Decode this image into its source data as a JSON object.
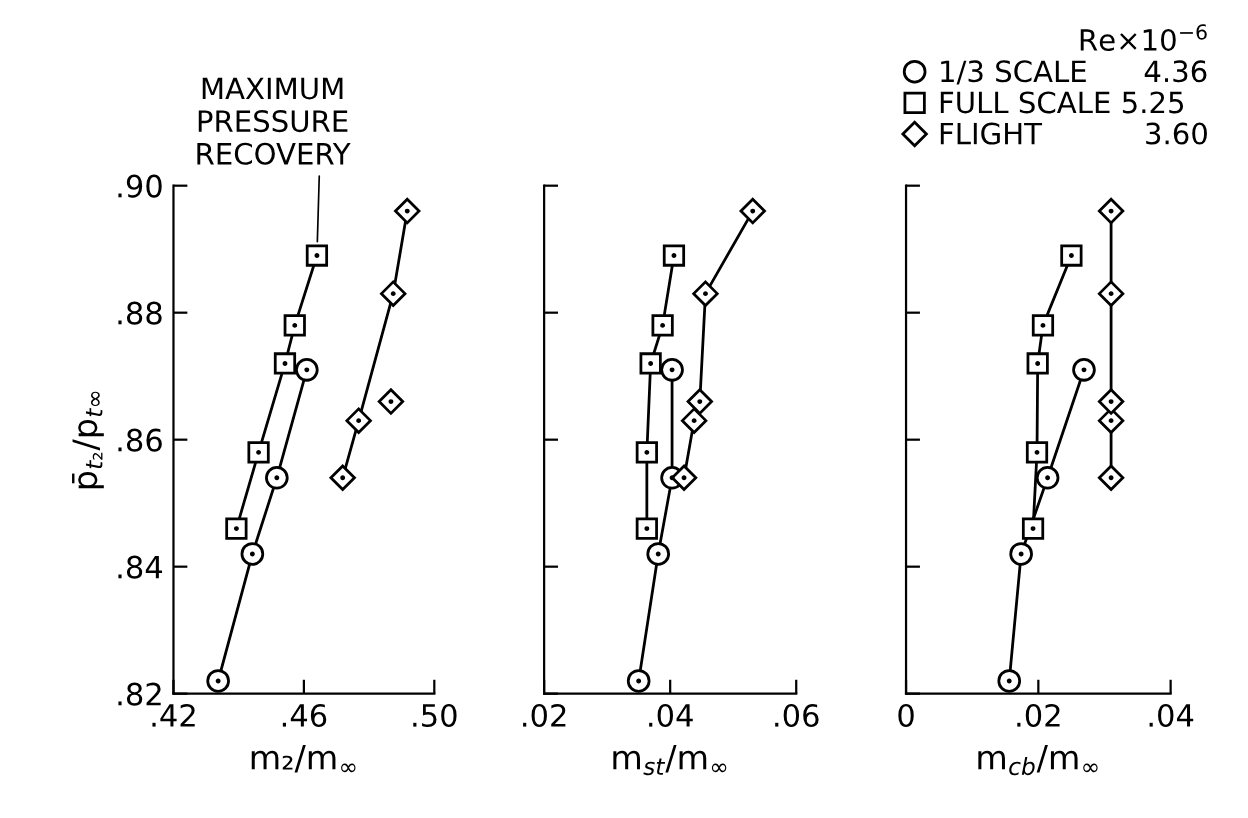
{
  "chart_data": [
    {
      "type": "line",
      "xlabel": "m₂/m$_{∞}$",
      "ylabel": "p̄$_{t₂}$/p$_{t∞}$",
      "xlim": [
        0.42,
        0.5
      ],
      "xticks": [
        {
          "value": 0.42,
          "label": ".42"
        },
        {
          "value": 0.46,
          "label": ".46"
        },
        {
          "value": 0.5,
          "label": ".50"
        }
      ],
      "ylim": [
        0.82,
        0.9
      ],
      "yticks": [
        {
          "value": 0.82,
          "label": ".82"
        },
        {
          "value": 0.84,
          "label": ".84"
        },
        {
          "value": 0.86,
          "label": ".86"
        },
        {
          "value": 0.88,
          "label": ".88"
        },
        {
          "value": 0.9,
          "label": ".90"
        }
      ],
      "annotations": [
        {
          "text": "MAXIMUM\nPRESSURE\nRECOVERY",
          "x": 0.464,
          "y": 0.889
        }
      ],
      "series": [
        {
          "marker": "circle",
          "color": "#000000",
          "x": [
            0.4337,
            0.4442,
            0.4517,
            0.4609
          ],
          "values": [
            0.822,
            0.842,
            0.854,
            0.871
          ]
        },
        {
          "marker": "square",
          "color": "#000000",
          "x": [
            0.4393,
            0.4461,
            0.4542,
            0.4572,
            0.464
          ],
          "values": [
            0.846,
            0.858,
            0.872,
            0.878,
            0.889
          ]
        },
        {
          "marker": "diamond",
          "color": "#000000",
          "x": [
            0.4719,
            0.4768,
            0.4874,
            0.4917
          ],
          "values": [
            0.854,
            0.863,
            0.883,
            0.896
          ]
        },
        {
          "type": "scatter",
          "marker": "diamond",
          "color": "#000000",
          "x": [
            0.4867
          ],
          "values": [
            0.866
          ]
        }
      ]
    },
    {
      "type": "line",
      "xlabel": "m$_{st}$/m$_{∞}$",
      "xlim": [
        0.02,
        0.06
      ],
      "xticks": [
        {
          "value": 0.02,
          "label": ".02"
        },
        {
          "value": 0.04,
          "label": ".04"
        },
        {
          "value": 0.06,
          "label": ".06"
        }
      ],
      "ylim": [
        0.82,
        0.9
      ],
      "yticks": [
        {
          "value": 0.82,
          "label": null
        },
        {
          "value": 0.84,
          "label": null
        },
        {
          "value": 0.86,
          "label": null
        },
        {
          "value": 0.88,
          "label": null
        },
        {
          "value": 0.9,
          "label": null
        }
      ],
      "tick_labels": "x",
      "series": [
        {
          "marker": "circle",
          "color": "#000000",
          "x": [
            0.035,
            0.0381,
            0.0403,
            0.0403
          ],
          "values": [
            0.822,
            0.842,
            0.854,
            0.871
          ]
        },
        {
          "marker": "square",
          "color": "#000000",
          "x": [
            0.0363,
            0.0363,
            0.0369,
            0.0388,
            0.0406
          ],
          "values": [
            0.846,
            0.858,
            0.872,
            0.878,
            0.889
          ]
        },
        {
          "marker": "diamond",
          "color": "#000000",
          "x": [
            0.0422,
            0.0438,
            0.0447,
            0.0456,
            0.0531
          ],
          "values": [
            0.854,
            0.863,
            0.866,
            0.883,
            0.896
          ]
        }
      ]
    },
    {
      "type": "line",
      "xlabel": "m$_{cb}$/m$_{∞}$",
      "xlim": [
        0,
        0.04
      ],
      "xticks": [
        {
          "value": 0,
          "label": "0"
        },
        {
          "value": 0.02,
          "label": ".02"
        },
        {
          "value": 0.04,
          "label": ".04"
        }
      ],
      "ylim": [
        0.82,
        0.9
      ],
      "yticks": [
        {
          "value": 0.82,
          "label": null
        },
        {
          "value": 0.84,
          "label": null
        },
        {
          "value": 0.86,
          "label": null
        },
        {
          "value": 0.88,
          "label": null
        },
        {
          "value": 0.9,
          "label": null
        }
      ],
      "tick_labels": "x",
      "legend": "top right",
      "legend_title": "Re×10$^{−6}$",
      "series": [
        {
          "name": "1/3 SCALE      4.36",
          "marker": "circle",
          "color": "#000000",
          "x": [
            0.0156,
            0.0174,
            0.0214,
            0.0269
          ],
          "values": [
            0.822,
            0.842,
            0.854,
            0.871
          ]
        },
        {
          "name": "FULL SCALE 5.25",
          "marker": "square",
          "color": "#000000",
          "x": [
            0.0192,
            0.0198,
            0.0199,
            0.0207,
            0.025
          ],
          "values": [
            0.846,
            0.858,
            0.872,
            0.878,
            0.889
          ]
        },
        {
          "name": "FLIGHT           3.60",
          "marker": "diamond",
          "color": "#000000",
          "x": [
            0.031,
            0.031,
            0.031,
            0.031,
            0.031
          ],
          "values": [
            0.854,
            0.863,
            0.866,
            0.883,
            0.896
          ]
        }
      ]
    }
  ]
}
